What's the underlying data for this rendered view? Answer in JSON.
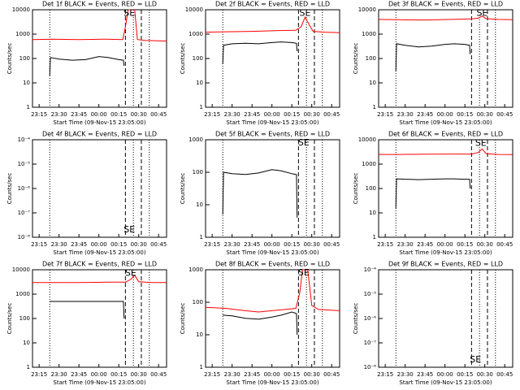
{
  "chart_data": [
    {
      "type": "line",
      "title": "Det 1f BLACK = Events, RED = LLD",
      "x_label": "Start Time (09-Nov-15 23:05:00)",
      "y_label": "Counts/sec",
      "log_y": true,
      "xlim": [
        5,
        106
      ],
      "xticks": [
        {
          "value": 10,
          "label": "23:15"
        },
        {
          "value": 25,
          "label": "23:30"
        },
        {
          "value": 40,
          "label": "23:45"
        },
        {
          "value": 55,
          "label": "00:00"
        },
        {
          "value": 70,
          "label": "00:15"
        },
        {
          "value": 85,
          "label": "00:30"
        },
        {
          "value": 100,
          "label": "00:45"
        }
      ],
      "ylim": [
        1,
        10000
      ],
      "yticks": [
        1,
        10,
        100,
        1000,
        10000
      ],
      "vlines": [
        {
          "x": 18,
          "style": "dotted"
        },
        {
          "x": 75,
          "style": "dashed"
        },
        {
          "x": 81,
          "style": "dotted"
        },
        {
          "x": 87,
          "style": "dashed"
        },
        {
          "x": 93,
          "style": "dotted"
        }
      ],
      "annotations": [
        {
          "text": "SE",
          "x": 78,
          "y": 7000
        }
      ],
      "series": [
        {
          "color": "#ff0000",
          "x": [
            5,
            20,
            40,
            60,
            73,
            75,
            77,
            82,
            84,
            90,
            106
          ],
          "values": [
            600,
            620,
            600,
            620,
            600,
            2000,
            10000,
            10000,
            600,
            550,
            520
          ]
        },
        {
          "color": "#000000",
          "x": [
            18,
            18.5,
            25,
            35,
            45,
            55,
            62,
            70,
            73.5,
            74
          ],
          "values": [
            20,
            110,
            95,
            85,
            90,
            120,
            110,
            90,
            85,
            50
          ]
        }
      ]
    },
    {
      "type": "line",
      "title": "Det 2f BLACK = Events, RED = LLD",
      "x_label": "Start Time (09-Nov-15 23:05:00)",
      "y_label": "Counts/sec",
      "log_y": true,
      "xlim": [
        5,
        106
      ],
      "xticks": [
        {
          "value": 10,
          "label": "23:15"
        },
        {
          "value": 25,
          "label": "23:30"
        },
        {
          "value": 40,
          "label": "23:45"
        },
        {
          "value": 55,
          "label": "00:00"
        },
        {
          "value": 70,
          "label": "00:15"
        },
        {
          "value": 85,
          "label": "00:30"
        },
        {
          "value": 100,
          "label": "00:45"
        }
      ],
      "ylim": [
        1,
        10000
      ],
      "yticks": [
        1,
        10,
        100,
        1000,
        10000
      ],
      "vlines": [
        {
          "x": 18,
          "style": "dotted"
        },
        {
          "x": 75,
          "style": "dashed"
        },
        {
          "x": 81,
          "style": "dotted"
        },
        {
          "x": 87,
          "style": "dashed"
        },
        {
          "x": 93,
          "style": "dotted"
        }
      ],
      "annotations": [
        {
          "text": "SE",
          "x": 80,
          "y": 7000
        }
      ],
      "series": [
        {
          "color": "#ff0000",
          "x": [
            5,
            20,
            40,
            60,
            73,
            77,
            80,
            83,
            86,
            95,
            106
          ],
          "values": [
            1200,
            1250,
            1300,
            1400,
            1450,
            2000,
            5000,
            2500,
            1300,
            1200,
            1150
          ]
        },
        {
          "color": "#000000",
          "x": [
            18,
            18.5,
            25,
            35,
            45,
            55,
            62,
            70,
            73.5,
            74
          ],
          "values": [
            60,
            350,
            400,
            420,
            400,
            450,
            480,
            450,
            420,
            200
          ]
        }
      ]
    },
    {
      "type": "line",
      "title": "Det 3f BLACK = Events, RED = LLD",
      "x_label": "Start Time (09-Nov-15 23:05:00)",
      "y_label": "Counts/sec",
      "log_y": true,
      "xlim": [
        5,
        106
      ],
      "xticks": [
        {
          "value": 10,
          "label": "23:15"
        },
        {
          "value": 25,
          "label": "23:30"
        },
        {
          "value": 40,
          "label": "23:45"
        },
        {
          "value": 55,
          "label": "00:00"
        },
        {
          "value": 70,
          "label": "00:15"
        },
        {
          "value": 85,
          "label": "00:30"
        },
        {
          "value": 100,
          "label": "00:45"
        }
      ],
      "ylim": [
        1,
        10000
      ],
      "yticks": [
        1,
        10,
        100,
        1000,
        10000
      ],
      "vlines": [
        {
          "x": 18,
          "style": "dotted"
        },
        {
          "x": 75,
          "style": "dashed"
        },
        {
          "x": 81,
          "style": "dotted"
        },
        {
          "x": 87,
          "style": "dashed"
        },
        {
          "x": 93,
          "style": "dotted"
        }
      ],
      "annotations": [
        {
          "text": "SE",
          "x": 83,
          "y": 7000
        }
      ],
      "series": [
        {
          "color": "#ff0000",
          "x": [
            5,
            20,
            40,
            60,
            75,
            80,
            83,
            86,
            95,
            106
          ],
          "values": [
            4000,
            3900,
            3800,
            4000,
            4200,
            4500,
            5500,
            4300,
            4000,
            3900
          ]
        },
        {
          "color": "#000000",
          "x": [
            18,
            18.5,
            25,
            35,
            45,
            55,
            62,
            70,
            73.5,
            74
          ],
          "values": [
            30,
            400,
            350,
            300,
            320,
            380,
            400,
            380,
            350,
            150
          ]
        }
      ]
    },
    {
      "type": "line",
      "title": "Det 4f BLACK = Events, RED = LLD",
      "x_label": "Start Time (09-Nov-15 23:05:00)",
      "y_label": "Counts/sec",
      "log_y": true,
      "xlim": [
        5,
        106
      ],
      "xticks": [
        {
          "value": 10,
          "label": "23:15"
        },
        {
          "value": 25,
          "label": "23:30"
        },
        {
          "value": 40,
          "label": "23:45"
        },
        {
          "value": 55,
          "label": "00:00"
        },
        {
          "value": 70,
          "label": "00:15"
        },
        {
          "value": 85,
          "label": "00:30"
        },
        {
          "value": 100,
          "label": "00:45"
        }
      ],
      "ylim": [
        1e-08,
        0.0001
      ],
      "yticks": [
        {
          "value": 1e-08,
          "label": "10⁻⁸"
        },
        {
          "value": 1e-07,
          "label": "10⁻⁷"
        },
        {
          "value": 1e-06,
          "label": "10⁻⁶"
        },
        {
          "value": 1e-05,
          "label": "10⁻⁵"
        },
        {
          "value": 0.0001,
          "label": "10⁻⁴"
        }
      ],
      "vlines": [
        {
          "x": 18,
          "style": "dotted"
        },
        {
          "x": 75,
          "style": "dashed"
        },
        {
          "x": 81,
          "style": "dotted"
        },
        {
          "x": 87,
          "style": "dashed"
        },
        {
          "x": 93,
          "style": "dotted"
        }
      ],
      "annotations": [
        {
          "text": "SE",
          "x": 78,
          "y": 2e-08
        }
      ],
      "series": []
    },
    {
      "type": "line",
      "title": "Det 5f BLACK = Events, RED = LLD",
      "x_label": "Start Time (09-Nov-15 23:05:00)",
      "y_label": "Counts/sec",
      "log_y": true,
      "xlim": [
        5,
        106
      ],
      "xticks": [
        {
          "value": 10,
          "label": "23:15"
        },
        {
          "value": 25,
          "label": "23:30"
        },
        {
          "value": 40,
          "label": "23:45"
        },
        {
          "value": 55,
          "label": "00:00"
        },
        {
          "value": 70,
          "label": "00:15"
        },
        {
          "value": 85,
          "label": "00:30"
        },
        {
          "value": 100,
          "label": "00:45"
        }
      ],
      "ylim": [
        1,
        1000
      ],
      "yticks": [
        1,
        10,
        100,
        1000
      ],
      "vlines": [
        {
          "x": 18,
          "style": "dotted"
        },
        {
          "x": 75,
          "style": "dashed"
        },
        {
          "x": 81,
          "style": "dotted"
        },
        {
          "x": 87,
          "style": "dashed"
        },
        {
          "x": 93,
          "style": "dotted"
        }
      ],
      "annotations": [
        {
          "text": "SE",
          "x": 79,
          "y": 800
        }
      ],
      "series": [
        {
          "color": "#000000",
          "x": [
            18,
            18.5,
            25,
            35,
            45,
            55,
            62,
            70,
            73.5,
            74
          ],
          "values": [
            5,
            100,
            90,
            85,
            95,
            120,
            110,
            90,
            85,
            4
          ]
        }
      ]
    },
    {
      "type": "line",
      "title": "Det 6f BLACK = Events, RED = LLD",
      "x_label": "Start Time (09-Nov-15 23:05:00)",
      "y_label": "Counts/sec",
      "log_y": true,
      "xlim": [
        5,
        106
      ],
      "xticks": [
        {
          "value": 10,
          "label": "23:15"
        },
        {
          "value": 25,
          "label": "23:30"
        },
        {
          "value": 40,
          "label": "23:45"
        },
        {
          "value": 55,
          "label": "00:00"
        },
        {
          "value": 70,
          "label": "00:15"
        },
        {
          "value": 85,
          "label": "00:30"
        },
        {
          "value": 100,
          "label": "00:45"
        }
      ],
      "ylim": [
        1,
        10000
      ],
      "yticks": [
        1,
        10,
        100,
        1000,
        10000
      ],
      "vlines": [
        {
          "x": 18,
          "style": "dotted"
        },
        {
          "x": 75,
          "style": "dashed"
        },
        {
          "x": 81,
          "style": "dotted"
        },
        {
          "x": 87,
          "style": "dashed"
        },
        {
          "x": 93,
          "style": "dotted"
        }
      ],
      "annotations": [
        {
          "text": "SE",
          "x": 82,
          "y": 7000
        }
      ],
      "series": [
        {
          "color": "#ff0000",
          "x": [
            5,
            20,
            40,
            60,
            75,
            80,
            83,
            86,
            95,
            106
          ],
          "values": [
            2500,
            2500,
            2550,
            2600,
            2600,
            3000,
            4200,
            2700,
            2500,
            2450
          ]
        },
        {
          "color": "#000000",
          "x": [
            18,
            18.5,
            25,
            35,
            45,
            55,
            62,
            70,
            73.5,
            74
          ],
          "values": [
            15,
            250,
            240,
            230,
            240,
            250,
            250,
            240,
            240,
            100
          ]
        }
      ]
    },
    {
      "type": "line",
      "title": "Det 7f BLACK = Events, RED = LLD",
      "x_label": "Start Time (09-Nov-15 23:05:00)",
      "y_label": "Counts/sec",
      "log_y": true,
      "xlim": [
        5,
        106
      ],
      "xticks": [
        {
          "value": 10,
          "label": "23:15"
        },
        {
          "value": 25,
          "label": "23:30"
        },
        {
          "value": 40,
          "label": "23:45"
        },
        {
          "value": 55,
          "label": "00:00"
        },
        {
          "value": 70,
          "label": "00:15"
        },
        {
          "value": 85,
          "label": "00:30"
        },
        {
          "value": 100,
          "label": "00:45"
        }
      ],
      "ylim": [
        1,
        10000
      ],
      "yticks": [
        1,
        10,
        100,
        1000,
        10000
      ],
      "vlines": [
        {
          "x": 18,
          "style": "dotted"
        },
        {
          "x": 75,
          "style": "dashed"
        },
        {
          "x": 81,
          "style": "dotted"
        },
        {
          "x": 87,
          "style": "dashed"
        },
        {
          "x": 93,
          "style": "dotted"
        }
      ],
      "annotations": [
        {
          "text": "SE",
          "x": 79,
          "y": 7000
        }
      ],
      "series": [
        {
          "color": "#ff0000",
          "x": [
            5,
            20,
            40,
            60,
            75,
            79,
            82,
            85,
            95,
            106
          ],
          "values": [
            3000,
            3000,
            3000,
            3100,
            3100,
            4000,
            6000,
            3200,
            3000,
            3000
          ]
        },
        {
          "color": "#000000",
          "x": [
            18,
            25,
            35,
            45,
            55,
            62,
            70,
            73.5,
            74
          ],
          "values": [
            500,
            500,
            500,
            500,
            500,
            500,
            500,
            500,
            100
          ]
        }
      ]
    },
    {
      "type": "line",
      "title": "Det 8f BLACK = Events, RED = LLD",
      "x_label": "Start Time (09-Nov-15 23:05:00)",
      "y_label": "Counts/sec",
      "log_y": true,
      "xlim": [
        5,
        106
      ],
      "xticks": [
        {
          "value": 10,
          "label": "23:15"
        },
        {
          "value": 25,
          "label": "23:30"
        },
        {
          "value": 40,
          "label": "23:45"
        },
        {
          "value": 55,
          "label": "00:00"
        },
        {
          "value": 70,
          "label": "00:15"
        },
        {
          "value": 85,
          "label": "00:30"
        },
        {
          "value": 100,
          "label": "00:45"
        }
      ],
      "ylim": [
        1,
        1000
      ],
      "yticks": [
        1,
        10,
        100,
        1000
      ],
      "vlines": [
        {
          "x": 18,
          "style": "dotted"
        },
        {
          "x": 75,
          "style": "dashed"
        },
        {
          "x": 81,
          "style": "dotted"
        },
        {
          "x": 87,
          "style": "dashed"
        },
        {
          "x": 93,
          "style": "dotted"
        }
      ],
      "annotations": [
        {
          "text": "SE",
          "x": 79,
          "y": 800
        }
      ],
      "series": [
        {
          "color": "#ff0000",
          "x": [
            5,
            20,
            35,
            45,
            55,
            65,
            73,
            76,
            78,
            82,
            85,
            90,
            106
          ],
          "values": [
            70,
            65,
            55,
            50,
            55,
            60,
            65,
            200,
            1000,
            1000,
            80,
            60,
            55
          ]
        },
        {
          "color": "#000000",
          "x": [
            18,
            25,
            35,
            45,
            55,
            62,
            70,
            73.5,
            74
          ],
          "values": [
            40,
            38,
            32,
            30,
            35,
            40,
            50,
            45,
            10
          ]
        }
      ]
    },
    {
      "type": "line",
      "title": "Det 9f BLACK = Events, RED = LLD",
      "x_label": "Start Time (09-Nov-15 23:05:00)",
      "y_label": "Counts/sec",
      "log_y": true,
      "xlim": [
        5,
        106
      ],
      "xticks": [
        {
          "value": 10,
          "label": "23:15"
        },
        {
          "value": 25,
          "label": "23:30"
        },
        {
          "value": 40,
          "label": "23:45"
        },
        {
          "value": 55,
          "label": "00:00"
        },
        {
          "value": 70,
          "label": "00:15"
        },
        {
          "value": 85,
          "label": "00:30"
        },
        {
          "value": 100,
          "label": "00:45"
        }
      ],
      "ylim": [
        1e-08,
        0.0001
      ],
      "yticks": [
        {
          "value": 1e-08,
          "label": "10⁻⁸"
        },
        {
          "value": 1e-07,
          "label": "10⁻⁷"
        },
        {
          "value": 1e-06,
          "label": "10⁻⁶"
        },
        {
          "value": 1e-05,
          "label": "10⁻⁵"
        },
        {
          "value": 0.0001,
          "label": "10⁻⁴"
        }
      ],
      "vlines": [
        {
          "x": 18,
          "style": "dotted"
        },
        {
          "x": 75,
          "style": "dashed"
        },
        {
          "x": 81,
          "style": "dotted"
        },
        {
          "x": 87,
          "style": "dashed"
        },
        {
          "x": 93,
          "style": "dotted"
        }
      ],
      "annotations": [
        {
          "text": "SE",
          "x": 78,
          "y": 2e-08
        }
      ],
      "series": []
    }
  ]
}
